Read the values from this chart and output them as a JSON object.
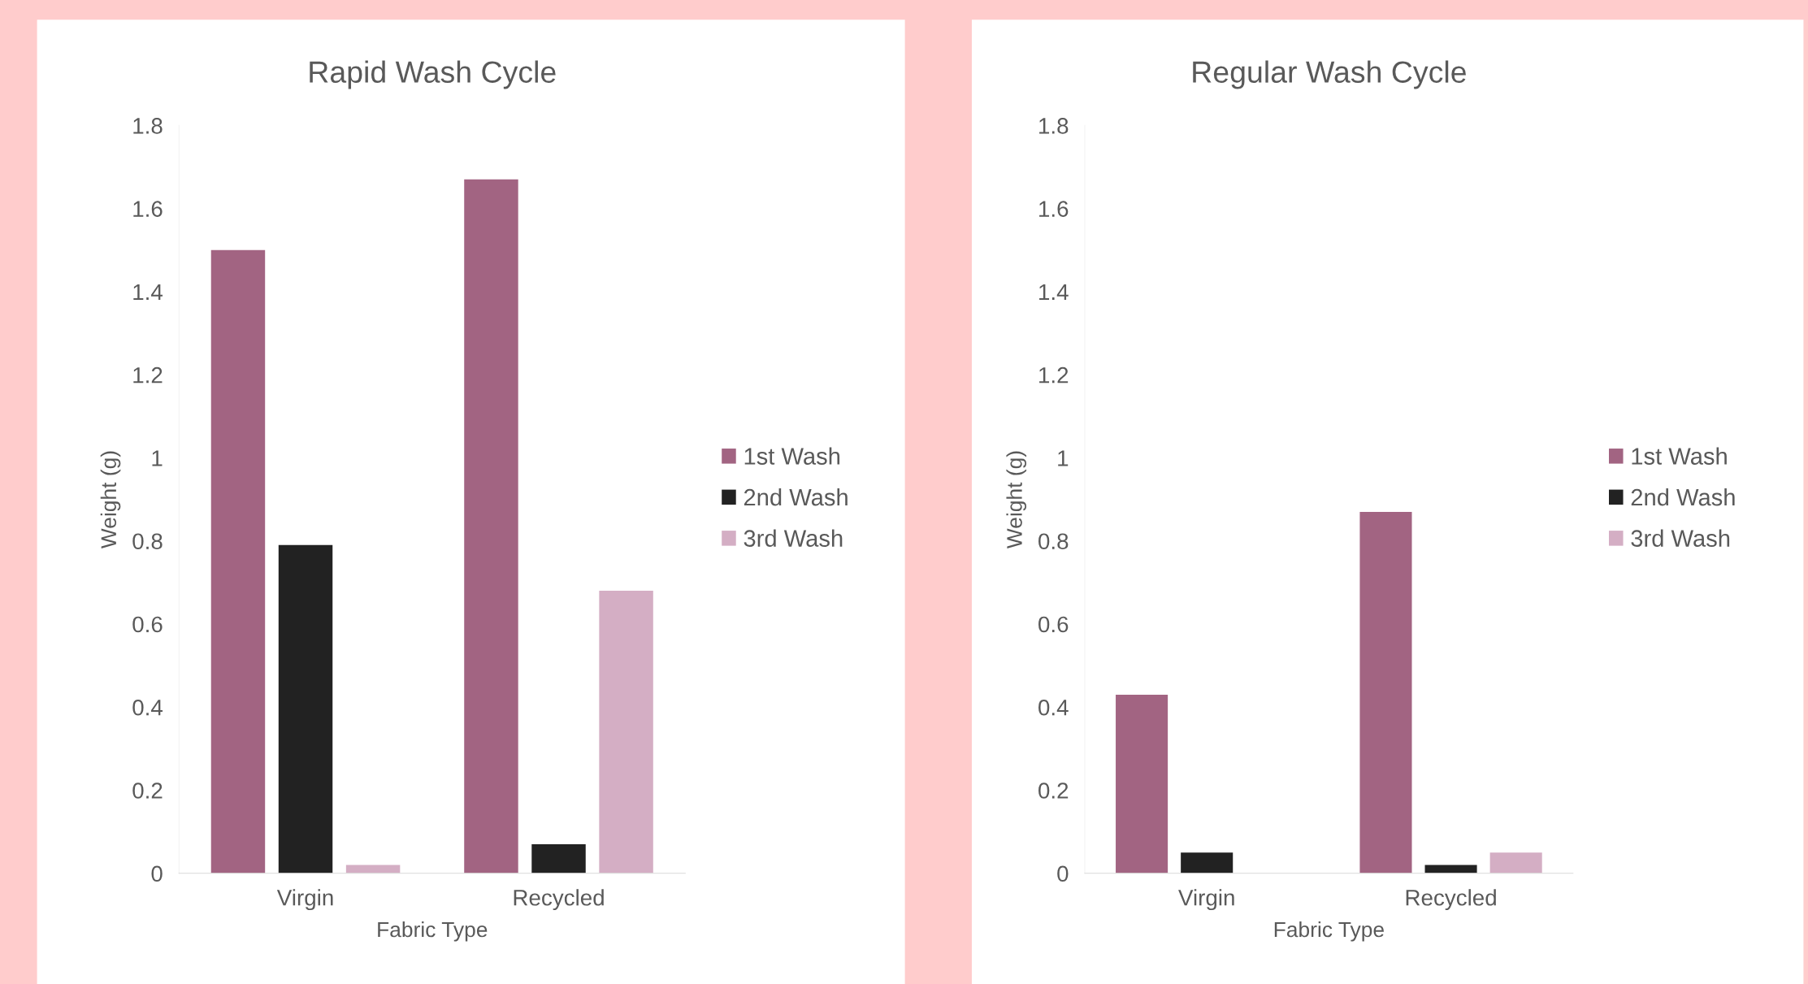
{
  "chart_data": [
    {
      "type": "bar",
      "title": "Rapid Wash Cycle",
      "xlabel": "Fabric Type",
      "ylabel": "Weight (g)",
      "categories": [
        "Virgin",
        "Recycled"
      ],
      "ylim": [
        0,
        1.8
      ],
      "yticks": [
        0,
        0.2,
        0.4,
        0.6,
        0.8,
        1,
        1.2,
        1.4,
        1.6,
        1.8
      ],
      "grid": false,
      "legend": "right",
      "series": [
        {
          "name": "1st Wash",
          "color": "#a26482",
          "values": [
            1.5,
            1.67
          ]
        },
        {
          "name": "2nd Wash",
          "color": "#222222",
          "values": [
            0.79,
            0.07
          ]
        },
        {
          "name": "3rd Wash",
          "color": "#d4aec4",
          "values": [
            0.02,
            0.68
          ]
        }
      ]
    },
    {
      "type": "bar",
      "title": "Regular Wash Cycle",
      "xlabel": "Fabric Type",
      "ylabel": "Weight (g)",
      "categories": [
        "Virgin",
        "Recycled"
      ],
      "ylim": [
        0,
        1.8
      ],
      "yticks": [
        0,
        0.2,
        0.4,
        0.6,
        0.8,
        1,
        1.2,
        1.4,
        1.6,
        1.8
      ],
      "grid": false,
      "legend": "right",
      "series": [
        {
          "name": "1st Wash",
          "color": "#a26482",
          "values": [
            0.43,
            0.87
          ]
        },
        {
          "name": "2nd Wash",
          "color": "#222222",
          "values": [
            0.05,
            0.02
          ]
        },
        {
          "name": "3rd Wash",
          "color": "#d4aec4",
          "values": [
            0,
            0.05
          ]
        }
      ]
    }
  ]
}
